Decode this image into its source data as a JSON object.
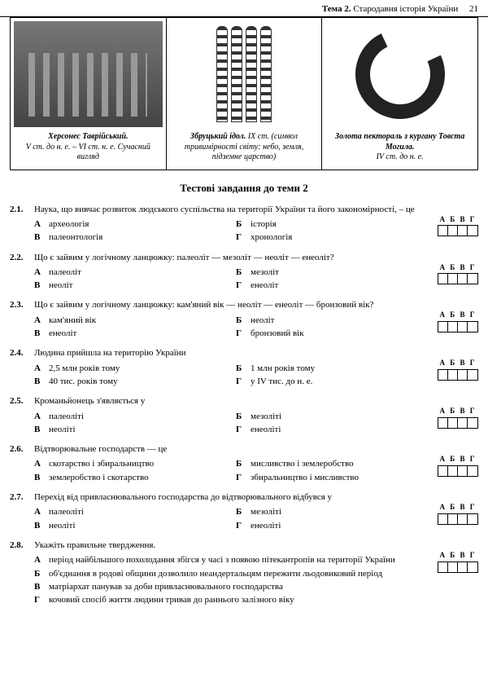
{
  "header": {
    "theme_label": "Тема 2.",
    "theme_title": "Стародавня історія України",
    "page_number": "21"
  },
  "images": [
    {
      "title": "Херсонес Таврійський.",
      "subtitle": "V ст. до н. е. – VI ст. н. е.\nСучасний вигляд"
    },
    {
      "title": "Збруцький ідол.",
      "subtitle": "IX ст.\n(символ тривимірності світу:\nнебо, земля, підземне царство)"
    },
    {
      "title": "Золота пектораль з кургану\nТовста Могила.",
      "subtitle": "IV ст. до н. е."
    }
  ],
  "section_title": "Тестові завдання до теми 2",
  "answer_letters": "А Б В Г",
  "questions": [
    {
      "num": "2.1.",
      "text": "Наука, що вивчає розвиток людського суспільства на території України та його закономірності, – це",
      "layout": "grid",
      "options": [
        {
          "l": "А",
          "t": "археологія"
        },
        {
          "l": "Б",
          "t": "історія"
        },
        {
          "l": "В",
          "t": "палеонтологія"
        },
        {
          "l": "Г",
          "t": "хронологія"
        }
      ]
    },
    {
      "num": "2.2.",
      "text": "Що є зайвим у логічному ланцюжку: палеоліт — мезоліт — неоліт — енеоліт?",
      "layout": "grid",
      "options": [
        {
          "l": "А",
          "t": "палеоліт"
        },
        {
          "l": "Б",
          "t": "мезоліт"
        },
        {
          "l": "В",
          "t": "неоліт"
        },
        {
          "l": "Г",
          "t": "енеоліт"
        }
      ]
    },
    {
      "num": "2.3.",
      "text": "Що є зайвим у логічному ланцюжку: кам'яний вік — неоліт — енеоліт — бронзовий вік?",
      "layout": "grid",
      "options": [
        {
          "l": "А",
          "t": "кам'яний вік"
        },
        {
          "l": "Б",
          "t": "неоліт"
        },
        {
          "l": "В",
          "t": "енеоліт"
        },
        {
          "l": "Г",
          "t": "бронзовий вік"
        }
      ]
    },
    {
      "num": "2.4.",
      "text": "Людина прийшла на територію України",
      "layout": "grid",
      "options": [
        {
          "l": "А",
          "t": "2,5 млн років тому"
        },
        {
          "l": "Б",
          "t": "1 млн років тому"
        },
        {
          "l": "В",
          "t": "40 тис. років тому"
        },
        {
          "l": "Г",
          "t": "у IV тис. до н. е."
        }
      ]
    },
    {
      "num": "2.5.",
      "text": "Кроманьйонець з'являється у",
      "layout": "grid",
      "options": [
        {
          "l": "А",
          "t": "палеоліті"
        },
        {
          "l": "Б",
          "t": "мезоліті"
        },
        {
          "l": "В",
          "t": "неоліті"
        },
        {
          "l": "Г",
          "t": "енеоліті"
        }
      ]
    },
    {
      "num": "2.6.",
      "text": "Відтворювальне господарств — це",
      "layout": "grid",
      "options": [
        {
          "l": "А",
          "t": "скотарство і збиральництво"
        },
        {
          "l": "Б",
          "t": "мисливство і землеробство"
        },
        {
          "l": "В",
          "t": "землеробство і скотарство"
        },
        {
          "l": "Г",
          "t": "збиральництво і мисливство"
        }
      ]
    },
    {
      "num": "2.7.",
      "text": "Перехід від привласнювального господарства до відтворювального відбувся у",
      "layout": "grid",
      "options": [
        {
          "l": "А",
          "t": "палеоліті"
        },
        {
          "l": "Б",
          "t": "мезоліті"
        },
        {
          "l": "В",
          "t": "неоліті"
        },
        {
          "l": "Г",
          "t": "енеоліті"
        }
      ]
    },
    {
      "num": "2.8.",
      "text": "Укажіть правильне твердження.",
      "layout": "list",
      "options": [
        {
          "l": "А",
          "t": "період найбільшого похолодання збігся у часі з появою пітекантропів на території України"
        },
        {
          "l": "Б",
          "t": "об'єднання в родові общини дозволило неандертальцям пережити льодовиковий період"
        },
        {
          "l": "В",
          "t": "матріархат панував за доби привласнювального господарства"
        },
        {
          "l": "Г",
          "t": "кочовий спосіб життя людини тривав до раннього залізного віку"
        }
      ]
    }
  ]
}
